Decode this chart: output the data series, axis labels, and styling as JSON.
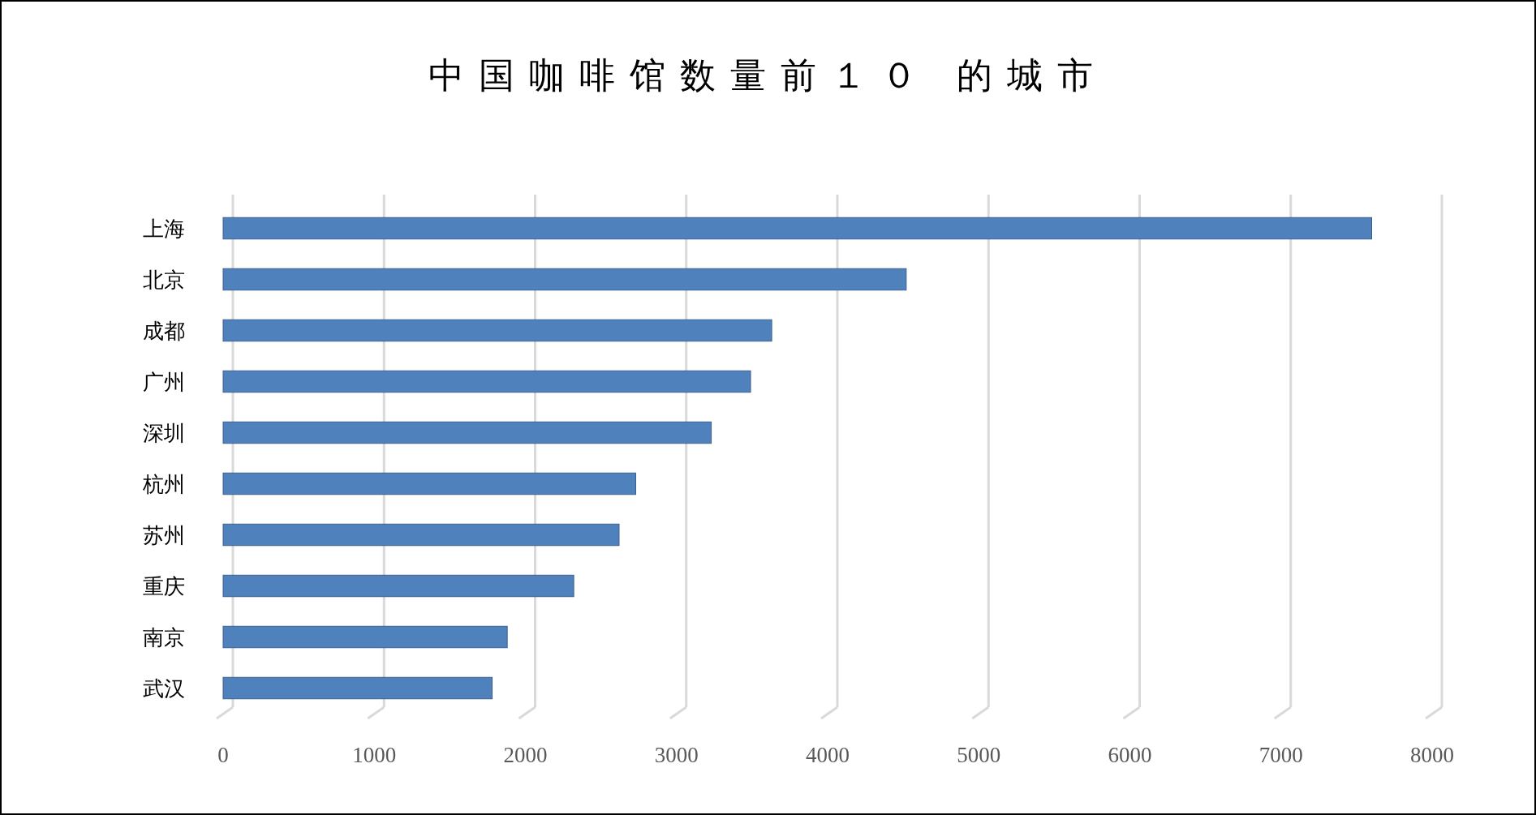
{
  "chart_data": {
    "type": "bar",
    "orientation": "horizontal",
    "title": "中国咖啡馆数量前１０ 的城市",
    "categories": [
      "上海",
      "北京",
      "成都",
      "广州",
      "深圳",
      "杭州",
      "苏州",
      "重庆",
      "南京",
      "武汉"
    ],
    "values": [
      7600,
      4520,
      3630,
      3490,
      3230,
      2730,
      2620,
      2320,
      1880,
      1780
    ],
    "color": "#4f81bd",
    "xlim": [
      0,
      8000
    ],
    "xticks": [
      0,
      1000,
      2000,
      3000,
      4000,
      5000,
      6000,
      7000,
      8000
    ],
    "grid": "x"
  }
}
